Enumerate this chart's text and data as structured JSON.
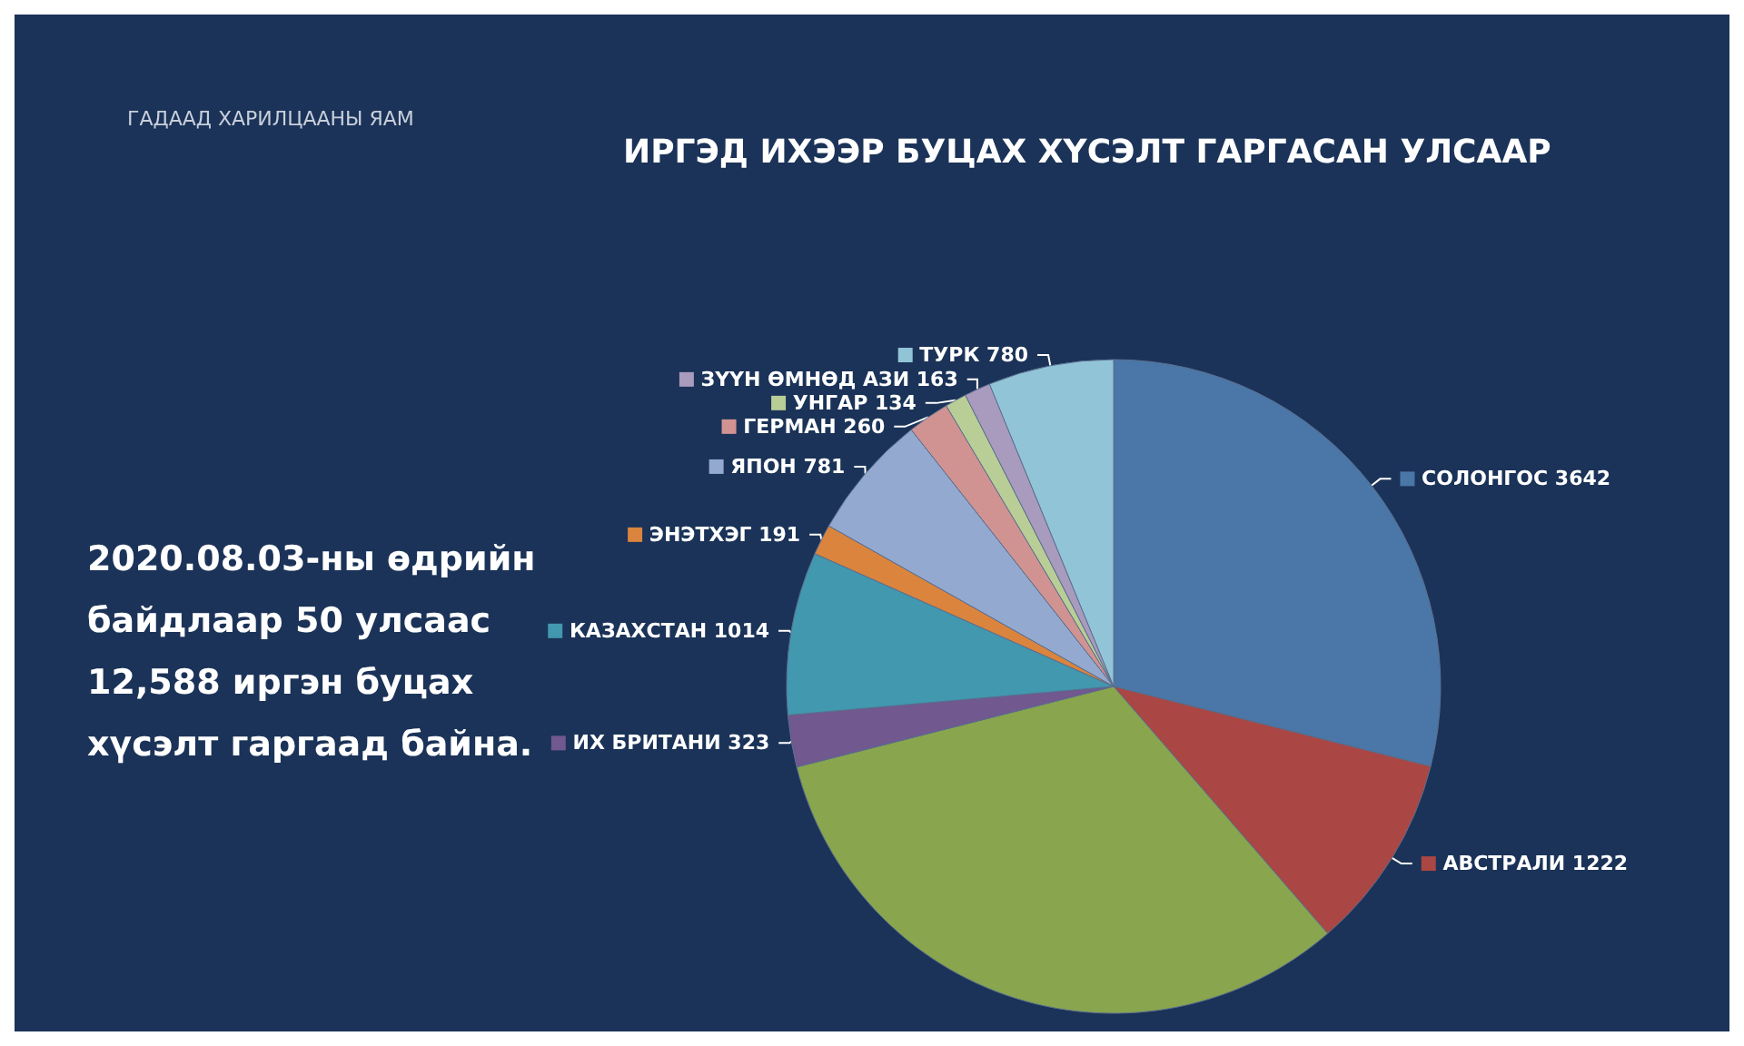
{
  "chart_data": {
    "type": "pie",
    "title": "ИРГЭД ИХЭЭР БУЦАХ ХҮСЭЛТ ГАРГАСАН УЛСААР",
    "annotations": [
      "ГАДААД ХАРИЛЦААНЫ ЯАМ",
      "2020.08.03-ны өдрийн\nбайдлаар 50 улсаас\n12,588 иргэн буцах\nхүсэлт гаргаад байна."
    ],
    "categories": [
      "СОЛОНГОС",
      "АВСТРАЛИ",
      null,
      "ИХ БРИТАНИ",
      "КАЗАХСТАН",
      "ЭНЭТХЭГ",
      "ЯПОН",
      "ГЕРМАН",
      "УНГАР",
      "ЗҮҮН ӨМНӨД АЗИ",
      "ТУРК"
    ],
    "values": [
      3642,
      1222,
      4078,
      323,
      1014,
      191,
      781,
      260,
      134,
      163,
      780
    ],
    "value_labels": [
      "3642",
      "1222",
      null,
      "323",
      "1014",
      "191",
      "781",
      "260",
      "134",
      "163",
      "780"
    ],
    "colors": [
      "#4a76a8",
      "#aa4643",
      "#89a54e",
      "#71588f",
      "#4198af",
      "#db843d",
      "#93a9cf",
      "#d19392",
      "#b9cd96",
      "#a99bbd",
      "#92c4d8"
    ],
    "legend": "right"
  }
}
